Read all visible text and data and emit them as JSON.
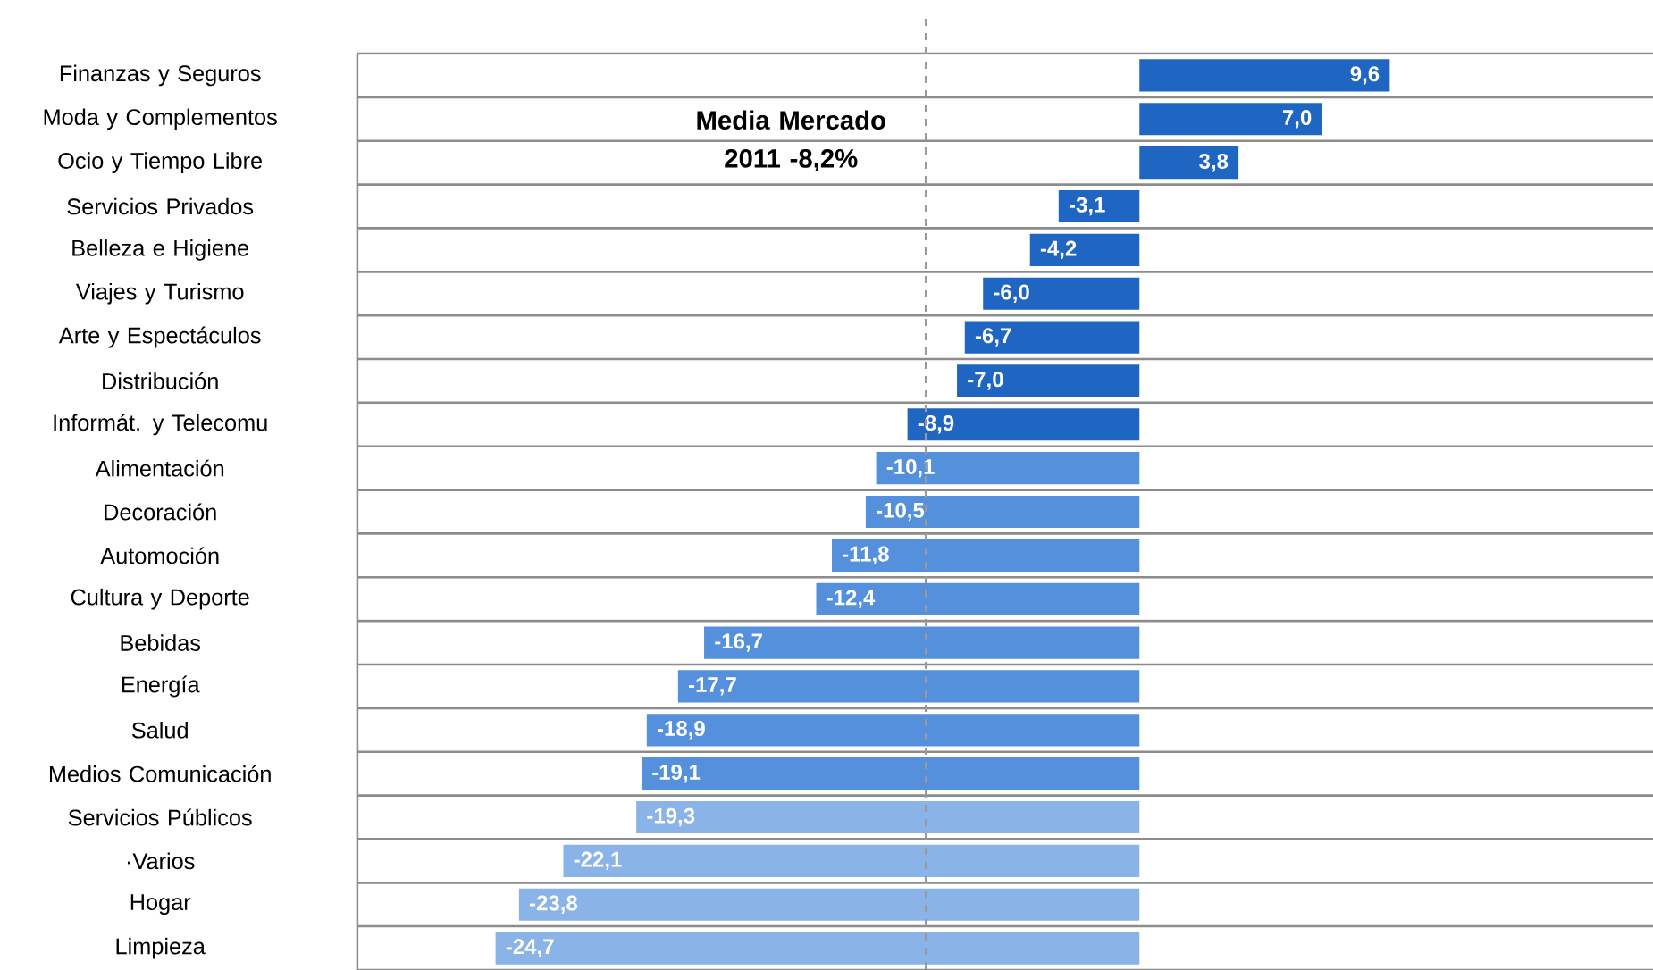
{
  "chart_data": {
    "type": "bar",
    "orientation": "horizontal",
    "categories": [
      "Finanzas y Seguros",
      "Moda y Complementos",
      "Ocio y Tiempo Libre",
      "Servicios Privados",
      "Belleza e Higiene",
      "Viajes y Turismo",
      "Arte y Espectáculos",
      "Distribución",
      "Informát. y Telecomu",
      "Alimentación",
      "Decoración",
      "Automoción",
      "Cultura y Deporte",
      "Bebidas",
      "Energía",
      "Salud",
      "Medios Comunicación",
      "Servicios Públicos",
      "·Varios",
      "Hogar",
      "Limpieza"
    ],
    "values": [
      9.6,
      7.0,
      3.8,
      -3.1,
      -4.2,
      -6.0,
      -6.7,
      -7.0,
      -8.9,
      -10.1,
      -10.5,
      -11.8,
      -12.4,
      -16.7,
      -17.7,
      -18.9,
      -19.1,
      -19.3,
      -22.1,
      -23.8,
      -24.7
    ],
    "value_labels": [
      "9,6",
      "7,0",
      "3,8",
      "-3,1",
      "-4,2",
      "-6,0",
      "-6,7",
      "-7,0",
      "-8,9",
      "-10,1",
      "-10,5",
      "-11,8",
      "-12,4",
      "-16,7",
      "-17,7",
      "-18,9",
      "-19,1",
      "-19,3",
      "-22,1",
      "-23,8",
      "-24,7"
    ],
    "colors": [
      "#1f66c2",
      "#1f66c2",
      "#1f66c2",
      "#1f66c2",
      "#1f66c2",
      "#1f66c2",
      "#1f66c2",
      "#1f66c2",
      "#1f66c2",
      "#5490dc",
      "#5490dc",
      "#5490dc",
      "#5490dc",
      "#5490dc",
      "#5490dc",
      "#5490dc",
      "#5490dc",
      "#8ab3e8",
      "#8ab3e8",
      "#8ab3e8",
      "#8ab3e8"
    ],
    "xlim": [
      -30,
      19.7
    ],
    "grid": "y",
    "ref_lines": [
      {
        "axis": "x",
        "value": -8.2,
        "label": "Media Mercado 2011 -8,2%",
        "color": "#999999",
        "line_style": "dashed"
      }
    ]
  }
}
